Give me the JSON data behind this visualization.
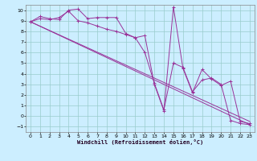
{
  "xlabel": "Windchill (Refroidissement éolien,°C)",
  "bg_color": "#cceeff",
  "grid_color": "#99cccc",
  "line_color": "#993399",
  "xlim": [
    -0.5,
    23.5
  ],
  "ylim": [
    -1.5,
    10.5
  ],
  "xticks": [
    0,
    1,
    2,
    3,
    4,
    5,
    6,
    7,
    8,
    9,
    10,
    11,
    12,
    13,
    14,
    15,
    16,
    17,
    18,
    19,
    20,
    21,
    22,
    23
  ],
  "yticks": [
    -1,
    0,
    1,
    2,
    3,
    4,
    5,
    6,
    7,
    8,
    9,
    10
  ],
  "line1_x": [
    0,
    1,
    2,
    3,
    4,
    5,
    6,
    7,
    8,
    9,
    10,
    11,
    12,
    13,
    14,
    15,
    16,
    17,
    18,
    19,
    20,
    21,
    22,
    23
  ],
  "line1_y": [
    8.9,
    9.4,
    9.2,
    9.1,
    10.0,
    10.1,
    9.2,
    9.3,
    9.3,
    9.3,
    7.8,
    7.4,
    7.6,
    3.0,
    0.5,
    10.3,
    4.5,
    2.2,
    4.4,
    3.5,
    2.9,
    3.3,
    -0.5,
    -0.7
  ],
  "line2_x": [
    0,
    1,
    2,
    3,
    4,
    5,
    6,
    7,
    8,
    9,
    10,
    11,
    12,
    13,
    14,
    15,
    16,
    17,
    18,
    19,
    20,
    21,
    22,
    23
  ],
  "line2_y": [
    8.9,
    9.2,
    9.1,
    9.3,
    9.9,
    9.0,
    8.8,
    8.5,
    8.2,
    8.0,
    7.7,
    7.4,
    6.0,
    3.1,
    0.6,
    5.0,
    4.6,
    2.3,
    3.4,
    3.6,
    3.0,
    -0.4,
    -0.7,
    -0.8
  ],
  "line3_x": [
    0,
    23
  ],
  "line3_y": [
    8.9,
    -0.8
  ],
  "line4_x": [
    0,
    23
  ],
  "line4_y": [
    8.9,
    -0.5
  ]
}
